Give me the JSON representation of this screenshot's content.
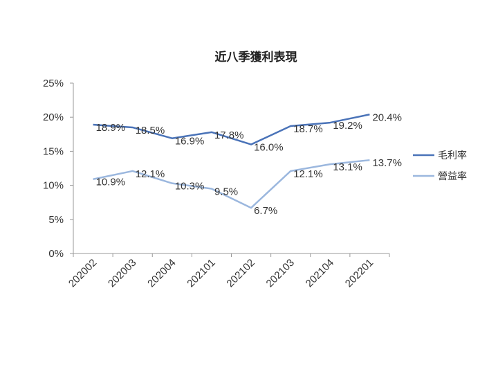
{
  "chart_data": {
    "type": "line",
    "title": "近八季獲利表現",
    "xlabel": "",
    "ylabel": "",
    "categories": [
      "202002",
      "202003",
      "202004",
      "202101",
      "202102",
      "202103",
      "202104",
      "202201"
    ],
    "ylim": [
      0,
      25
    ],
    "yticks": [
      "0%",
      "5%",
      "10%",
      "15%",
      "20%",
      "25%"
    ],
    "legend_position": "right",
    "grid": false,
    "series": [
      {
        "name": "毛利率",
        "values": [
          18.9,
          18.5,
          16.9,
          17.8,
          16.0,
          18.7,
          19.2,
          20.4
        ],
        "labels": [
          "18.9%",
          "18.5%",
          "16.9%",
          "17.8%",
          "16.0%",
          "18.7%",
          "19.2%",
          "20.4%"
        ],
        "color": "#4a73b8"
      },
      {
        "name": "營益率",
        "values": [
          10.9,
          12.1,
          10.3,
          9.5,
          6.7,
          12.1,
          13.1,
          13.7
        ],
        "labels": [
          "10.9%",
          "12.1%",
          "10.3%",
          "9.5%",
          "6.7%",
          "12.1%",
          "13.1%",
          "13.7%"
        ],
        "color": "#9bb7de"
      }
    ]
  }
}
